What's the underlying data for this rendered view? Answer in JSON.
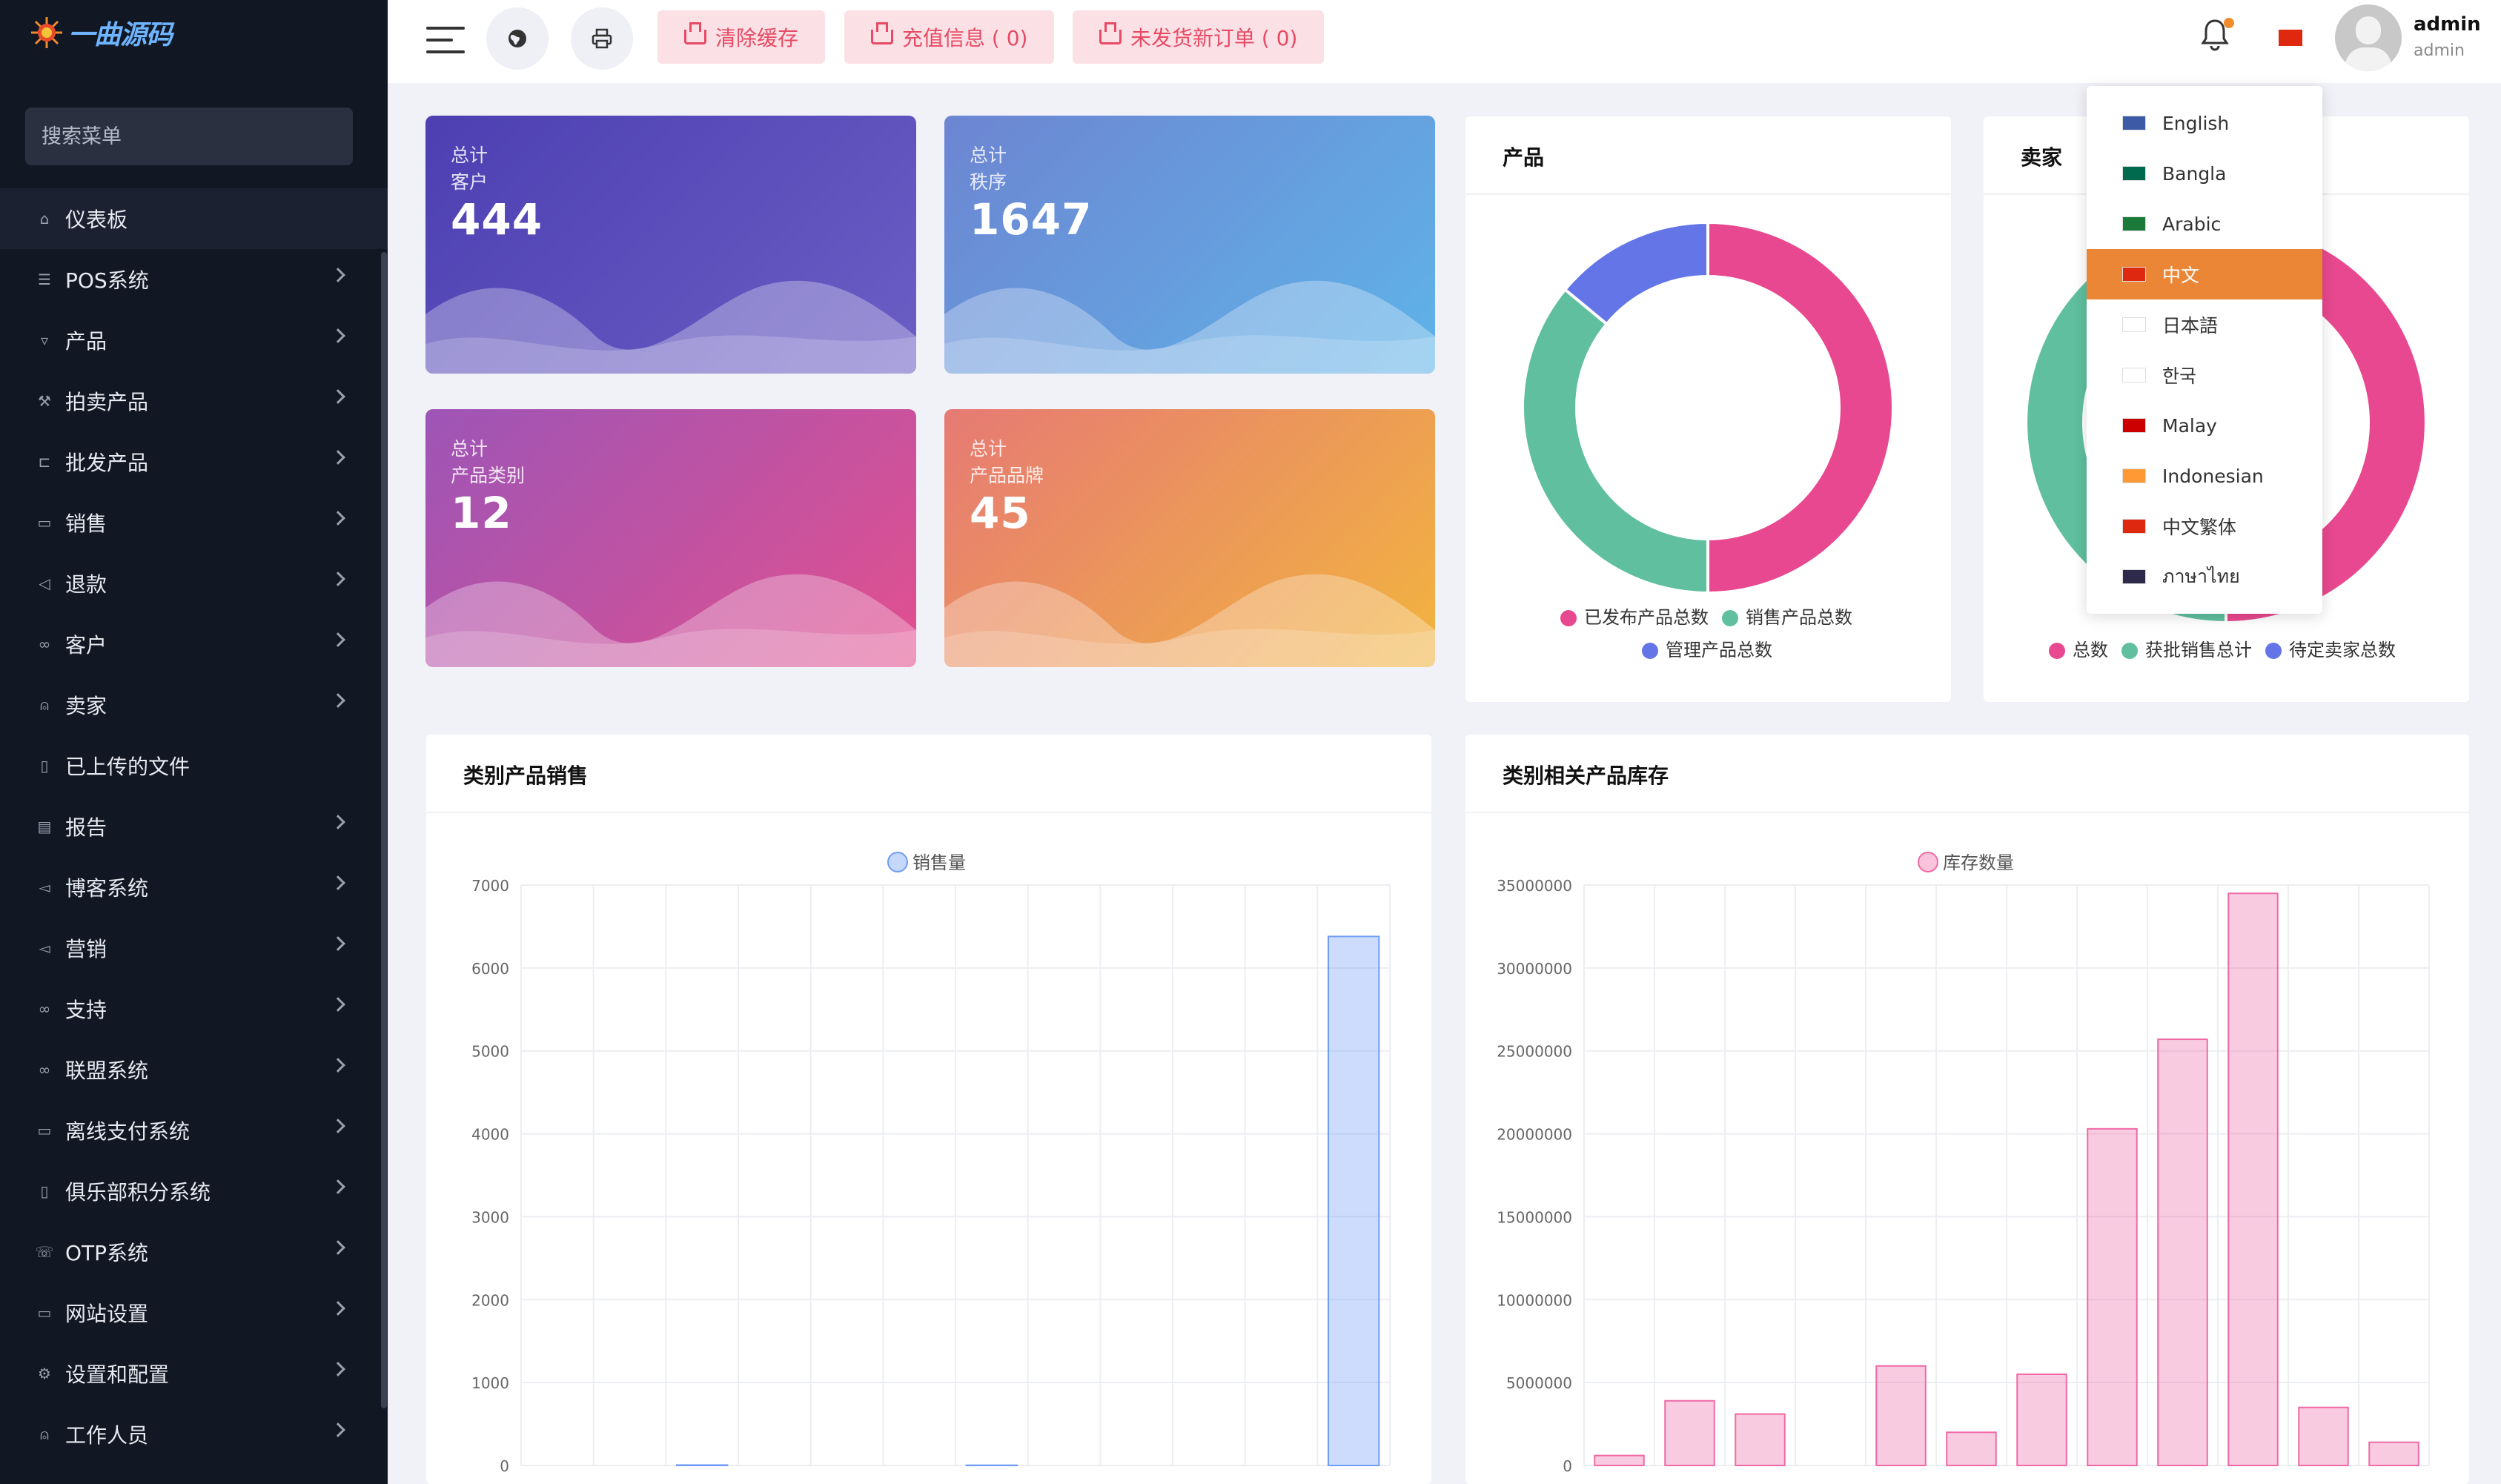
{
  "brand": {
    "logo_text": "一曲源码"
  },
  "sidebar": {
    "search_placeholder": "搜索菜单",
    "items": [
      {
        "label": "仪表板",
        "icon": "home-icon",
        "glyph": "⌂",
        "chevron": false,
        "active": true
      },
      {
        "label": "POS系统",
        "icon": "list-icon",
        "glyph": "☰",
        "chevron": true
      },
      {
        "label": "产品",
        "icon": "cart-icon",
        "glyph": "▿",
        "chevron": true
      },
      {
        "label": "拍卖产品",
        "icon": "gavel-icon",
        "glyph": "⚒",
        "chevron": true
      },
      {
        "label": "批发产品",
        "icon": "truck-icon",
        "glyph": "⊏",
        "chevron": true
      },
      {
        "label": "销售",
        "icon": "receipt-icon",
        "glyph": "▭",
        "chevron": true
      },
      {
        "label": "退款",
        "icon": "rewind-icon",
        "glyph": "◁",
        "chevron": true
      },
      {
        "label": "客户",
        "icon": "users-icon",
        "glyph": "∞",
        "chevron": true
      },
      {
        "label": "卖家",
        "icon": "user-icon",
        "glyph": "⍝",
        "chevron": true
      },
      {
        "label": "已上传的文件",
        "icon": "folder-icon",
        "glyph": "▯",
        "chevron": false
      },
      {
        "label": "报告",
        "icon": "file-icon",
        "glyph": "▤",
        "chevron": true
      },
      {
        "label": "博客系统",
        "icon": "megaphone-icon",
        "glyph": "◅",
        "chevron": true
      },
      {
        "label": "营销",
        "icon": "bullhorn-icon",
        "glyph": "◅",
        "chevron": true
      },
      {
        "label": "支持",
        "icon": "link-icon",
        "glyph": "∞",
        "chevron": true
      },
      {
        "label": "联盟系统",
        "icon": "chain-icon",
        "glyph": "∞",
        "chevron": true
      },
      {
        "label": "离线支付系统",
        "icon": "wallet-icon",
        "glyph": "▭",
        "chevron": true
      },
      {
        "label": "俱乐部积分系统",
        "icon": "coin-icon",
        "glyph": "▯",
        "chevron": true
      },
      {
        "label": "OTP系统",
        "icon": "phone-icon",
        "glyph": "☏",
        "chevron": true
      },
      {
        "label": "网站设置",
        "icon": "monitor-icon",
        "glyph": "▭",
        "chevron": true
      },
      {
        "label": "设置和配置",
        "icon": "gear-icon",
        "glyph": "⚙",
        "chevron": true
      },
      {
        "label": "工作人员",
        "icon": "staff-icon",
        "glyph": "⍝",
        "chevron": true
      }
    ]
  },
  "topbar": {
    "clear_cache": "清除缓存",
    "recharge": "充值信息 ( 0)",
    "unshipped": "未发货新订单 ( 0)",
    "user_name": "admin",
    "user_role": "admin"
  },
  "stats": [
    {
      "small1": "总计",
      "small2": "客户",
      "value": "444",
      "colors": [
        "#4d3fb2",
        "#6b5ec4"
      ]
    },
    {
      "small1": "总计",
      "small2": "秩序",
      "value": "1647",
      "colors": [
        "#6d85d2",
        "#5fb3e8"
      ]
    },
    {
      "small1": "总计",
      "small2": "产品类别",
      "value": "12",
      "colors": [
        "#9d55b6",
        "#e2508f"
      ]
    },
    {
      "small1": "总计",
      "small2": "产品品牌",
      "value": "45",
      "colors": [
        "#e67a74",
        "#f2b43f"
      ]
    }
  ],
  "product_card": {
    "title": "产品",
    "legend": [
      "已发布产品总数",
      "销售产品总数",
      "管理产品总数"
    ]
  },
  "seller_card": {
    "title": "卖家",
    "legend": [
      "总数",
      "获批销售总计",
      "待定卖家总数"
    ]
  },
  "sales_card": {
    "title": "类别产品销售",
    "legend": "销售量"
  },
  "stock_card": {
    "title": "类别相关产品库存",
    "legend": "库存数量"
  },
  "languages": [
    {
      "label": "English",
      "flag": "us-flag-icon",
      "color": "#3c5aa6"
    },
    {
      "label": "Bangla",
      "flag": "bd-flag-icon",
      "color": "#006a4e"
    },
    {
      "label": "Arabic",
      "flag": "sa-flag-icon",
      "color": "#1b7a3a"
    },
    {
      "label": "中文",
      "flag": "cn-flag-icon",
      "color": "#de2910",
      "active": true
    },
    {
      "label": "日本語",
      "flag": "jp-flag-icon",
      "color": "#ffffff"
    },
    {
      "label": "한국",
      "flag": "kr-flag-icon",
      "color": "#ffffff"
    },
    {
      "label": "Malay",
      "flag": "my-flag-icon",
      "color": "#cc0000"
    },
    {
      "label": "Indonesian",
      "flag": "in-flag-icon",
      "color": "#ff9933"
    },
    {
      "label": "中文繁体",
      "flag": "hk-flag-icon",
      "color": "#de2910"
    },
    {
      "label": "ภาษาไทย",
      "flag": "th-flag-icon",
      "color": "#2d2a4a"
    }
  ],
  "chart_data": [
    {
      "type": "pie",
      "title": "产品",
      "labels": [
        "已发布产品总数",
        "销售产品总数",
        "管理产品总数"
      ],
      "values": [
        50,
        36,
        14
      ],
      "colors": [
        "#e8488f",
        "#5fbf9f",
        "#6475e8"
      ]
    },
    {
      "type": "pie",
      "title": "卖家",
      "labels": [
        "总数",
        "获批销售总计",
        "待定卖家总数"
      ],
      "values": [
        50,
        50,
        0
      ],
      "colors": [
        "#e8488f",
        "#5fbf9f",
        "#6475e8"
      ]
    },
    {
      "type": "bar",
      "title": "类别产品销售",
      "series": [
        {
          "name": "销售量",
          "values": [
            0,
            0,
            5,
            0,
            0,
            0,
            3,
            0,
            0,
            0,
            0,
            6380
          ]
        }
      ],
      "yticks": [
        "0",
        "1000",
        "2000",
        "3000",
        "4000",
        "5000",
        "6000",
        "7000"
      ],
      "ylim": [
        0,
        7000
      ],
      "color": "#6f9cf5"
    },
    {
      "type": "bar",
      "title": "类别相关产品库存",
      "series": [
        {
          "name": "库存数量",
          "values": [
            600000,
            3900000,
            3100000,
            0,
            6000000,
            2000000,
            5500000,
            20300000,
            25700000,
            34500000,
            3500000,
            1400000
          ]
        }
      ],
      "yticks": [
        "0",
        "5000000",
        "10000000",
        "15000000",
        "20000000",
        "25000000",
        "30000000",
        "35000000"
      ],
      "ylim": [
        0,
        35000000
      ],
      "color": "#ef6aa6"
    }
  ]
}
